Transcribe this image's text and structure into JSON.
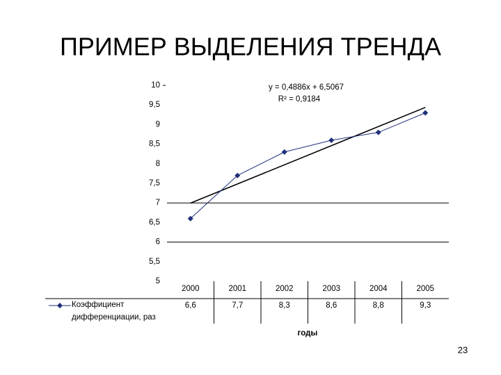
{
  "title": "ПРИМЕР ВЫДЕЛЕНИЯ ТРЕНДА",
  "page_number": "23",
  "chart_data": {
    "type": "line",
    "categories": [
      "2000",
      "2001",
      "2002",
      "2003",
      "2004",
      "2005"
    ],
    "series": [
      {
        "name": "Коэффициент дифференциации, раз",
        "color": "#1f2f7a",
        "values": [
          6.6,
          7.7,
          8.3,
          8.6,
          8.8,
          9.3
        ],
        "value_labels": [
          "6,6",
          "7,7",
          "8,3",
          "8,6",
          "8,8",
          "9,3"
        ]
      }
    ],
    "x_label": "годы",
    "ylim": [
      5,
      10
    ],
    "yticks": [
      5,
      {
        "value": 5.5,
        "label": "5,5"
      },
      6,
      {
        "value": 6.5,
        "label": "6,5"
      },
      7,
      {
        "value": 7.5,
        "label": "7,5"
      },
      8,
      {
        "value": 8.5,
        "label": "8,5"
      },
      9,
      {
        "value": 9.5,
        "label": "9,5"
      },
      10
    ],
    "reference_lines": [
      7,
      6
    ],
    "trendline": {
      "equation": "y = 0,4886x + 6,5067",
      "r2": "R² = 0,9184",
      "slope": 0.4886,
      "intercept": 6.5067,
      "color": "#000000"
    },
    "data_table": true
  }
}
